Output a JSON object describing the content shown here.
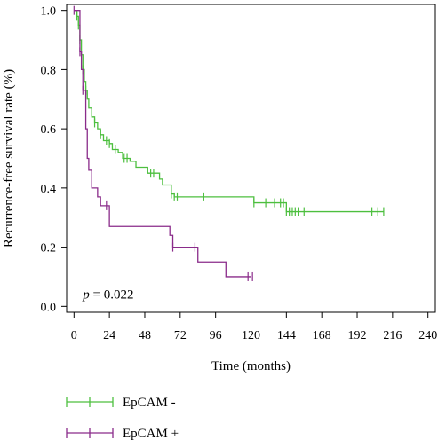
{
  "chart_data": {
    "type": "line",
    "title": "",
    "xlabel": "Time (months)",
    "ylabel": "Recurrence-free survival rate (%)",
    "xlim": [
      -5,
      245
    ],
    "ylim": [
      -0.02,
      1.02
    ],
    "x_ticks": [
      0,
      24,
      48,
      72,
      96,
      120,
      144,
      168,
      192,
      216,
      240
    ],
    "y_ticks": [
      0.0,
      0.2,
      0.4,
      0.6,
      0.8,
      1.0
    ],
    "y_tick_labels": [
      "0.0",
      "0.2",
      "0.4",
      "0.6",
      "0.8",
      "1.0"
    ],
    "grid": false,
    "legend_position": "bottom-left",
    "annotation": {
      "italic": "p",
      "text": " = 0.022",
      "x": 3,
      "y": 0.05
    },
    "series": [
      {
        "name": "EpCAM -",
        "color": "#4dbf3f",
        "points": [
          [
            0,
            1.0
          ],
          [
            2,
            0.98
          ],
          [
            3,
            0.95
          ],
          [
            4,
            0.9
          ],
          [
            5,
            0.85
          ],
          [
            6,
            0.8
          ],
          [
            7,
            0.76
          ],
          [
            8,
            0.73
          ],
          [
            9,
            0.7
          ],
          [
            10,
            0.67
          ],
          [
            12,
            0.64
          ],
          [
            14,
            0.62
          ],
          [
            16,
            0.6
          ],
          [
            18,
            0.58
          ],
          [
            20,
            0.56
          ],
          [
            24,
            0.55
          ],
          [
            26,
            0.53
          ],
          [
            30,
            0.52
          ],
          [
            33,
            0.5
          ],
          [
            38,
            0.49
          ],
          [
            42,
            0.47
          ],
          [
            50,
            0.45
          ],
          [
            58,
            0.43
          ],
          [
            60,
            0.41
          ],
          [
            66,
            0.38
          ],
          [
            68,
            0.37
          ],
          [
            120,
            0.37
          ],
          [
            122,
            0.35
          ],
          [
            143,
            0.35
          ],
          [
            144,
            0.32
          ],
          [
            210,
            0.32
          ]
        ],
        "censor_x": [
          2,
          3,
          4,
          6,
          8,
          14,
          18,
          22,
          24,
          28,
          34,
          36,
          52,
          54,
          66,
          68,
          70,
          88,
          122,
          130,
          136,
          140,
          142,
          144,
          146,
          148,
          150,
          152,
          156,
          202,
          206,
          210
        ]
      },
      {
        "name": "EpCAM +",
        "color": "#8a2b8a",
        "points": [
          [
            0,
            1.0
          ],
          [
            4,
            0.86
          ],
          [
            5,
            0.8
          ],
          [
            6,
            0.73
          ],
          [
            8,
            0.6
          ],
          [
            9,
            0.5
          ],
          [
            10,
            0.46
          ],
          [
            12,
            0.4
          ],
          [
            16,
            0.37
          ],
          [
            18,
            0.34
          ],
          [
            24,
            0.27
          ],
          [
            65,
            0.24
          ],
          [
            67,
            0.2
          ],
          [
            82,
            0.2
          ],
          [
            84,
            0.15
          ],
          [
            102,
            0.15
          ],
          [
            103,
            0.1
          ],
          [
            120,
            0.1
          ]
        ],
        "censor_x": [
          0,
          4,
          6,
          22,
          67,
          82,
          118,
          121
        ]
      }
    ]
  }
}
